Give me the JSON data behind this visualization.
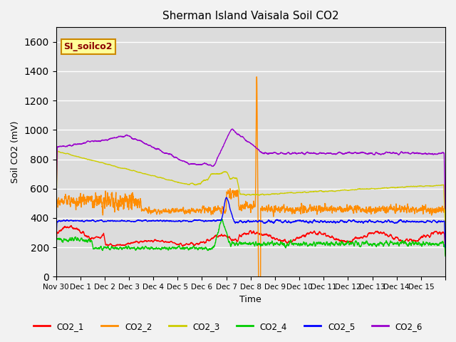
{
  "title": "Sherman Island Vaisala Soil CO2",
  "ylabel": "Soil CO2 (mV)",
  "xlabel": "Time",
  "watermark": "SI_soilco2",
  "ylim": [
    0,
    1700
  ],
  "yticks": [
    0,
    200,
    400,
    600,
    800,
    1000,
    1200,
    1400,
    1600
  ],
  "xtick_positions": [
    0,
    1,
    2,
    3,
    4,
    5,
    6,
    7,
    8,
    9,
    10,
    11,
    12,
    13,
    14,
    15,
    16
  ],
  "xtick_labels": [
    "Nov 30",
    "Dec 1",
    "Dec 2",
    "Dec 3",
    "Dec 4",
    "Dec 5",
    "Dec 6",
    "Dec 7",
    "Dec 8",
    "Dec 9",
    "Dec 10",
    "Dec 11",
    "Dec 12",
    "Dec 13",
    "Dec 14",
    "Dec 15",
    ""
  ],
  "colors": {
    "CO2_1": "#ff0000",
    "CO2_2": "#ff8c00",
    "CO2_3": "#cccc00",
    "CO2_4": "#00cc00",
    "CO2_5": "#0000ff",
    "CO2_6": "#9900cc"
  },
  "background_color": "#dcdcdc",
  "grid_color": "#ffffff",
  "watermark_bg": "#ffff99",
  "watermark_border": "#cc8800",
  "watermark_text_color": "#8b0000",
  "legend_labels": [
    "CO2_1",
    "CO2_2",
    "CO2_3",
    "CO2_4",
    "CO2_5",
    "CO2_6"
  ]
}
